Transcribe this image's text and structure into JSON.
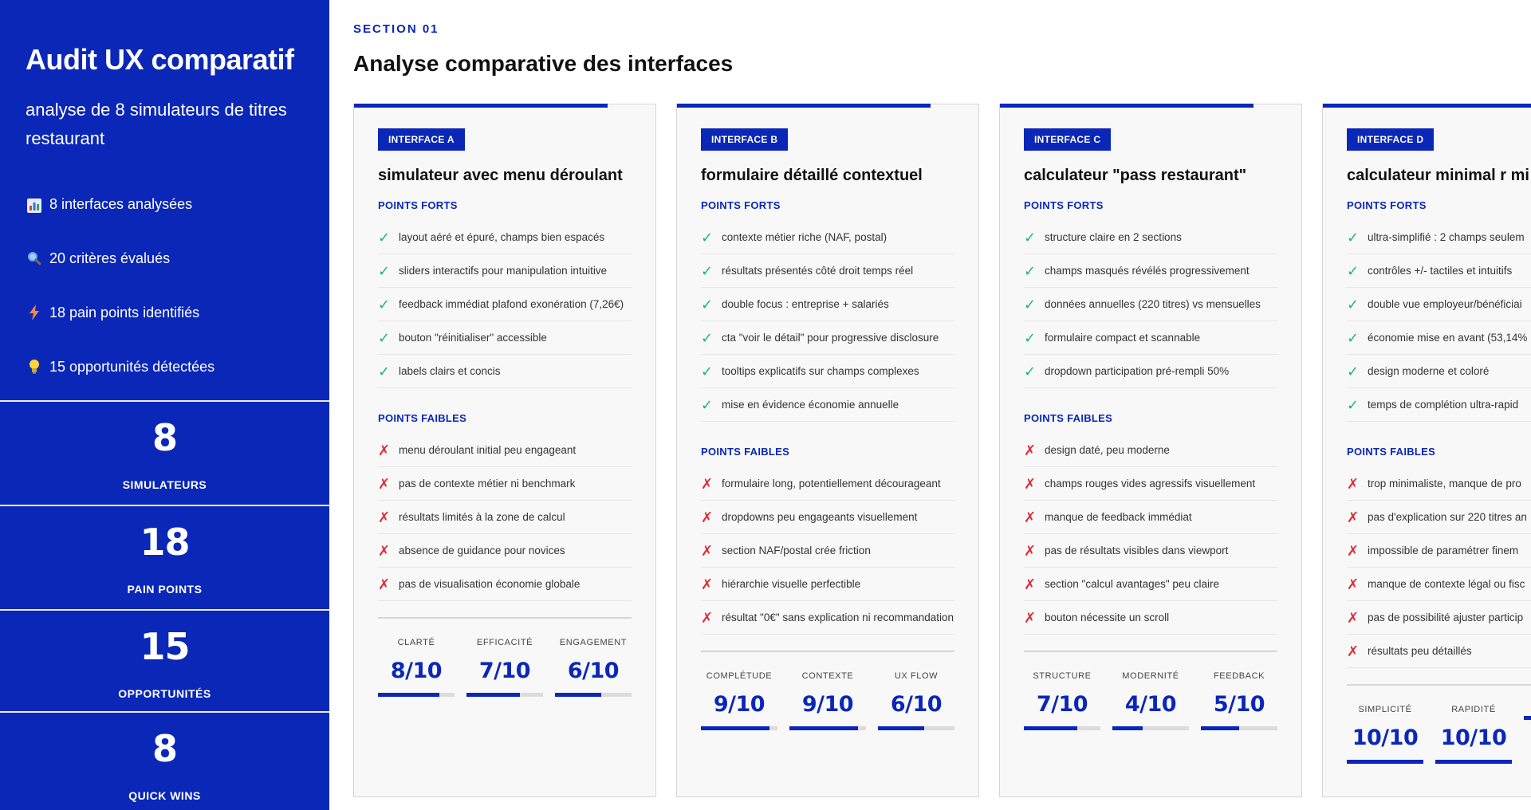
{
  "sidebar": {
    "title": "Audit UX comparatif",
    "subtitle": "analyse de 8 simulateurs de titres restaurant",
    "stats": [
      {
        "icon": "bar-chart-icon",
        "text": "8 interfaces analysées"
      },
      {
        "icon": "magnifier-icon",
        "text": "20 critères évalués"
      },
      {
        "icon": "lightning-icon",
        "text": "18 pain points identifiés"
      },
      {
        "icon": "lightbulb-icon",
        "text": "15 opportunités détectées"
      }
    ],
    "kpis": [
      {
        "value": "8",
        "label": "SIMULATEURS"
      },
      {
        "value": "18",
        "label": "PAIN POINTS"
      },
      {
        "value": "15",
        "label": "OPPORTUNITÉS"
      },
      {
        "value": "8",
        "label": "QUICK WINS"
      }
    ]
  },
  "main": {
    "eyebrow": "SECTION 01",
    "title": "Analyse comparative des interfaces",
    "strengths_label": "POINTS FORTS",
    "weaknesses_label": "POINTS FAIBLES",
    "colors": {
      "accent": "#0a27b8",
      "check": "#1db386",
      "cross": "#dc2f3a"
    },
    "cards": [
      {
        "badge": "INTERFACE A",
        "title": "simulateur avec menu déroulant",
        "strengths": [
          "layout aéré et épuré, champs bien espacés",
          "sliders interactifs pour manipulation intuitive",
          "feedback immédiat plafond exonération (7,26€)",
          "bouton \"réinitialiser\" accessible",
          "labels clairs et concis"
        ],
        "weaknesses": [
          "menu déroulant initial peu engageant",
          "pas de contexte métier ni benchmark",
          "résultats limités à la zone de calcul",
          "absence de guidance pour novices",
          "pas de visualisation économie globale"
        ],
        "scores": [
          {
            "label": "CLARTÉ",
            "value": "8/10",
            "ratio": 0.8
          },
          {
            "label": "EFFICACITÉ",
            "value": "7/10",
            "ratio": 0.7
          },
          {
            "label": "ENGAGEMENT",
            "value": "6/10",
            "ratio": 0.6
          }
        ]
      },
      {
        "badge": "INTERFACE B",
        "title": "formulaire détaillé contextuel",
        "strengths": [
          "contexte métier riche (NAF, postal)",
          "résultats présentés côté droit temps réel",
          "double focus : entreprise + salariés",
          "cta \"voir le détail\" pour progressive disclosure",
          "tooltips explicatifs sur champs complexes",
          "mise en évidence économie annuelle"
        ],
        "weaknesses": [
          "formulaire long, potentiellement décourageant",
          "dropdowns peu engageants visuellement",
          "section NAF/postal crée friction",
          "hiérarchie visuelle perfectible",
          "résultat \"0€\" sans explication ni recommandation"
        ],
        "scores": [
          {
            "label": "COMPLÉTUDE",
            "value": "9/10",
            "ratio": 0.9
          },
          {
            "label": "CONTEXTE",
            "value": "9/10",
            "ratio": 0.9
          },
          {
            "label": "UX FLOW",
            "value": "6/10",
            "ratio": 0.6
          }
        ]
      },
      {
        "badge": "INTERFACE C",
        "title": "calculateur \"pass restaurant\"",
        "strengths": [
          "structure claire en 2 sections",
          "champs masqués révélés progressivement",
          "données annuelles (220 titres) vs mensuelles",
          "formulaire compact et scannable",
          "dropdown participation pré-rempli 50%"
        ],
        "weaknesses": [
          "design daté, peu moderne",
          "champs rouges vides agressifs visuellement",
          "manque de feedback immédiat",
          "pas de résultats visibles dans viewport",
          "section \"calcul avantages\" peu claire",
          "bouton nécessite un scroll"
        ],
        "scores": [
          {
            "label": "STRUCTURE",
            "value": "7/10",
            "ratio": 0.7
          },
          {
            "label": "MODERNITÉ",
            "value": "4/10",
            "ratio": 0.4
          },
          {
            "label": "FEEDBACK",
            "value": "5/10",
            "ratio": 0.5
          }
        ]
      },
      {
        "badge": "INTERFACE D",
        "title": "calculateur minimal r mi",
        "strengths": [
          "ultra-simplifié : 2 champs seulem",
          "contrôles +/- tactiles et intuitifs",
          "double vue employeur/bénéficiai",
          "économie mise en avant (53,14%",
          "design moderne et coloré",
          "temps de complétion ultra-rapid"
        ],
        "weaknesses": [
          "trop minimaliste, manque de pro",
          "pas d'explication sur 220 titres an",
          "impossible de paramétrer finem",
          "manque de contexte légal ou fisc",
          "pas de possibilité ajuster particip",
          "résultats peu détaillés"
        ],
        "scores": [
          {
            "label": "SIMPLICITÉ",
            "value": "10/10",
            "ratio": 1.0
          },
          {
            "label": "RAPIDITÉ",
            "value": "10/10",
            "ratio": 1.0
          },
          {
            "label": "",
            "value": "",
            "ratio": 1.0
          }
        ]
      }
    ]
  }
}
